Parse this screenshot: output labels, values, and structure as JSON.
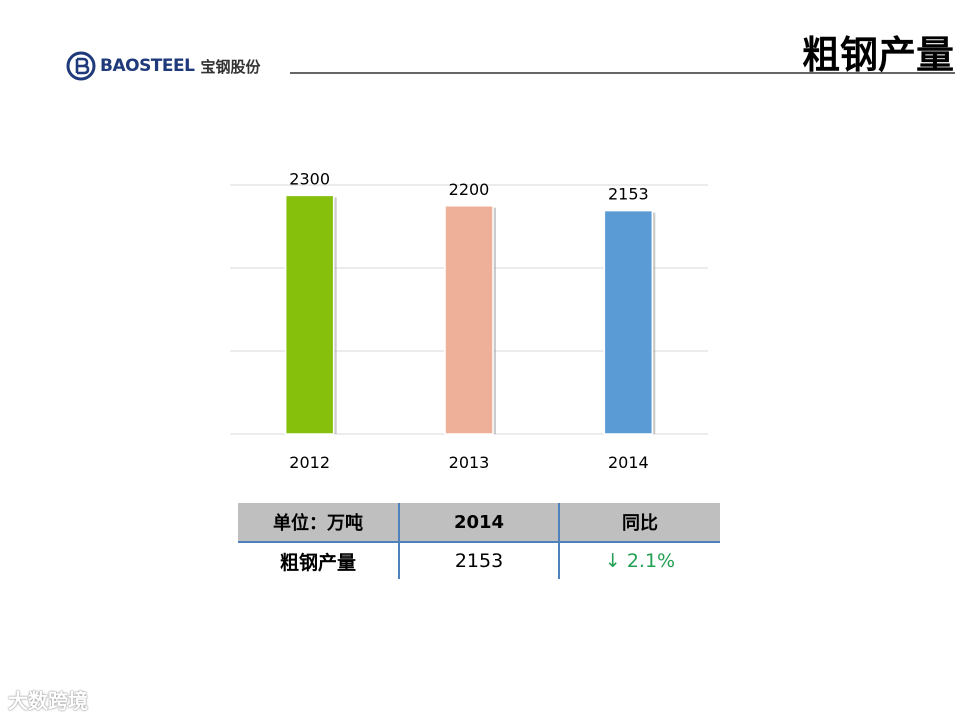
{
  "header": {
    "logo_en": "BAOSTEEL",
    "logo_cn": "宝钢股份",
    "title": "粗钢产量"
  },
  "chart_data": {
    "type": "bar",
    "categories": [
      "2012",
      "2013",
      "2014"
    ],
    "values": [
      2300,
      2200,
      2153
    ],
    "data_labels": [
      "2300",
      "2200",
      "2153"
    ],
    "colors": [
      "#86bf0c",
      "#efb09a",
      "#5b9bd5"
    ],
    "ylim": [
      0,
      2400
    ],
    "grid": true,
    "title": "",
    "xlabel": "",
    "ylabel": ""
  },
  "table": {
    "headers": [
      "单位：万吨",
      "2014",
      "同比"
    ],
    "rows": [
      {
        "label": "粗钢产量",
        "value": "2153",
        "change": "↓ 2.1%"
      }
    ],
    "change_color": "#22a052"
  },
  "watermark": "大数跨境"
}
